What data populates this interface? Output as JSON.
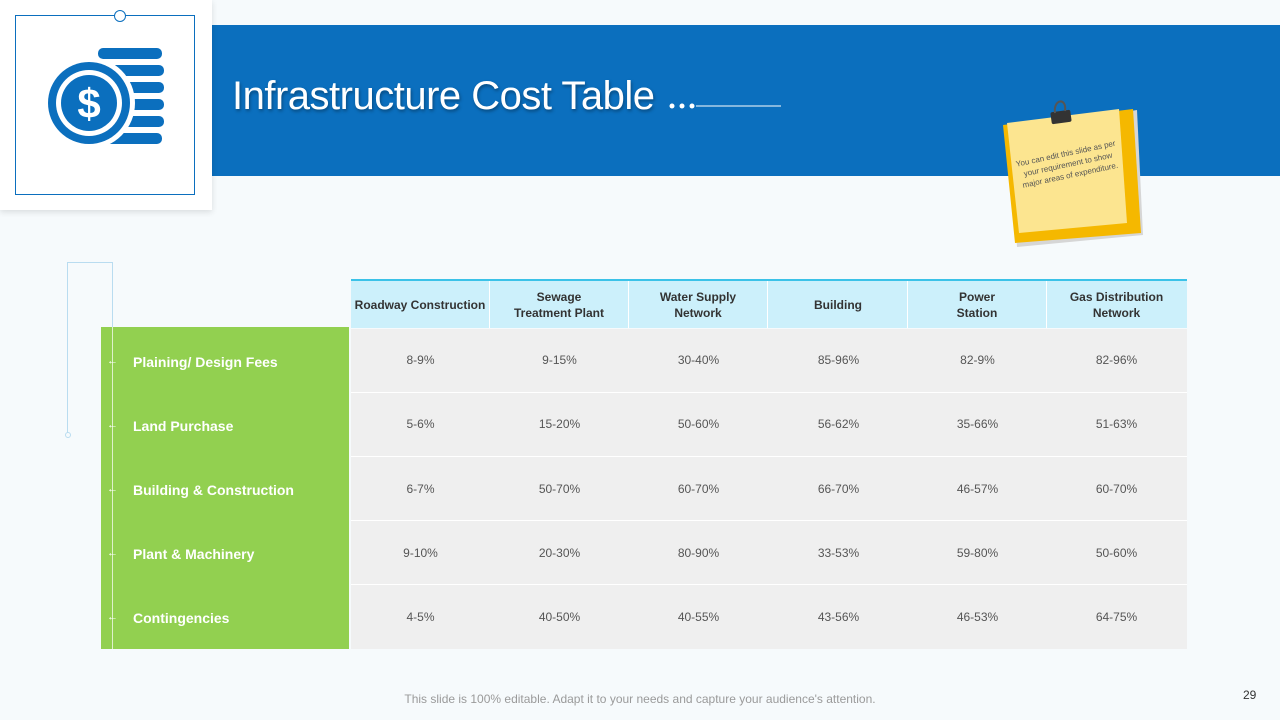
{
  "slide": {
    "title": "Infrastructure Cost Table",
    "sticky_note": "You can edit this slide as per your requirement to show major areas of expenditure.",
    "footer": "This slide is 100% editable. Adapt it to your needs and capture your audience's attention.",
    "page_number": "29",
    "icon": "dollar-coins-icon"
  },
  "colors": {
    "header_blue": "#0b6fbe",
    "row_green": "#92d050",
    "header_cell": "#ccf0fb",
    "note_yellow": "#fce590"
  },
  "table": {
    "columns": [
      "Roadway Construction",
      "Sewage\nTreatment Plant",
      "Water Supply\nNetwork",
      "Building",
      "Power\nStation",
      "Gas Distribution\nNetwork"
    ],
    "rows": [
      {
        "label": "Plaining/ Design Fees",
        "values": [
          "8-9%",
          "9-15%",
          "30-40%",
          "85-96%",
          "82-9%",
          "82-96%"
        ]
      },
      {
        "label": "Land Purchase",
        "values": [
          "5-6%",
          "15-20%",
          "50-60%",
          "56-62%",
          "35-66%",
          "51-63%"
        ]
      },
      {
        "label": "Building & Construction",
        "values": [
          "6-7%",
          "50-70%",
          "60-70%",
          "66-70%",
          "46-57%",
          "60-70%"
        ]
      },
      {
        "label": "Plant & Machinery",
        "values": [
          "9-10%",
          "20-30%",
          "80-90%",
          "33-53%",
          "59-80%",
          "50-60%"
        ]
      },
      {
        "label": "Contingencies",
        "values": [
          "4-5%",
          "40-50%",
          "40-55%",
          "43-56%",
          "46-53%",
          "64-75%"
        ]
      }
    ]
  }
}
